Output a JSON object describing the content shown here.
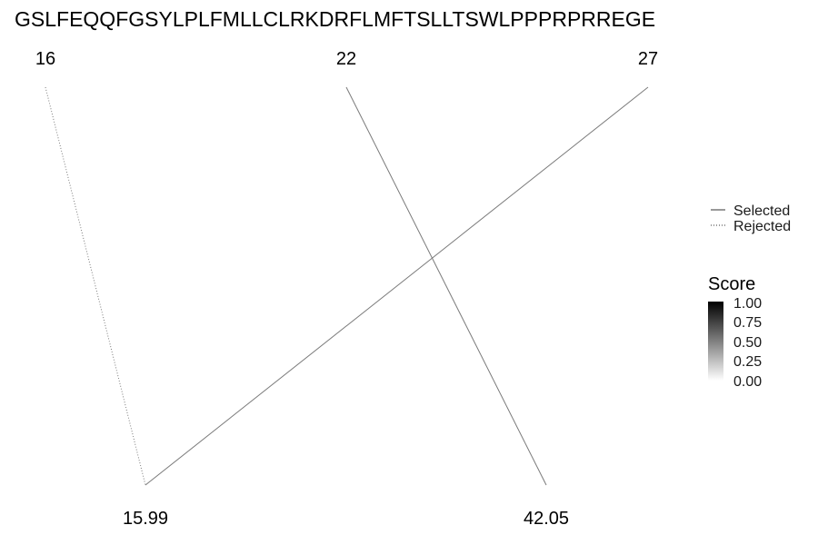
{
  "sequence": "GSLFEQQFGSYLPLFMLLCLRKDRFLMFTSLLTSWLPPPRPRREGE",
  "top_labels": [
    "16",
    "22",
    "27"
  ],
  "bottom_labels": [
    "15.99",
    "42.05"
  ],
  "connections": [
    {
      "from": "16",
      "to": "15.99",
      "status": "Rejected",
      "score": 0.5
    },
    {
      "from": "22",
      "to": "42.05",
      "status": "Selected",
      "score": 0.5
    },
    {
      "from": "27",
      "to": "15.99",
      "status": "Selected",
      "score": 0.5
    }
  ],
  "legend": {
    "line_types": [
      {
        "label": "Selected",
        "style": "solid"
      },
      {
        "label": "Rejected",
        "style": "dotted"
      }
    ],
    "score": {
      "title": "Score",
      "ticks": [
        "1.00",
        "0.75",
        "0.50",
        "0.25",
        "0.00"
      ],
      "range": [
        0,
        1
      ],
      "color_low": "#ffffff",
      "color_high": "#000000"
    }
  }
}
